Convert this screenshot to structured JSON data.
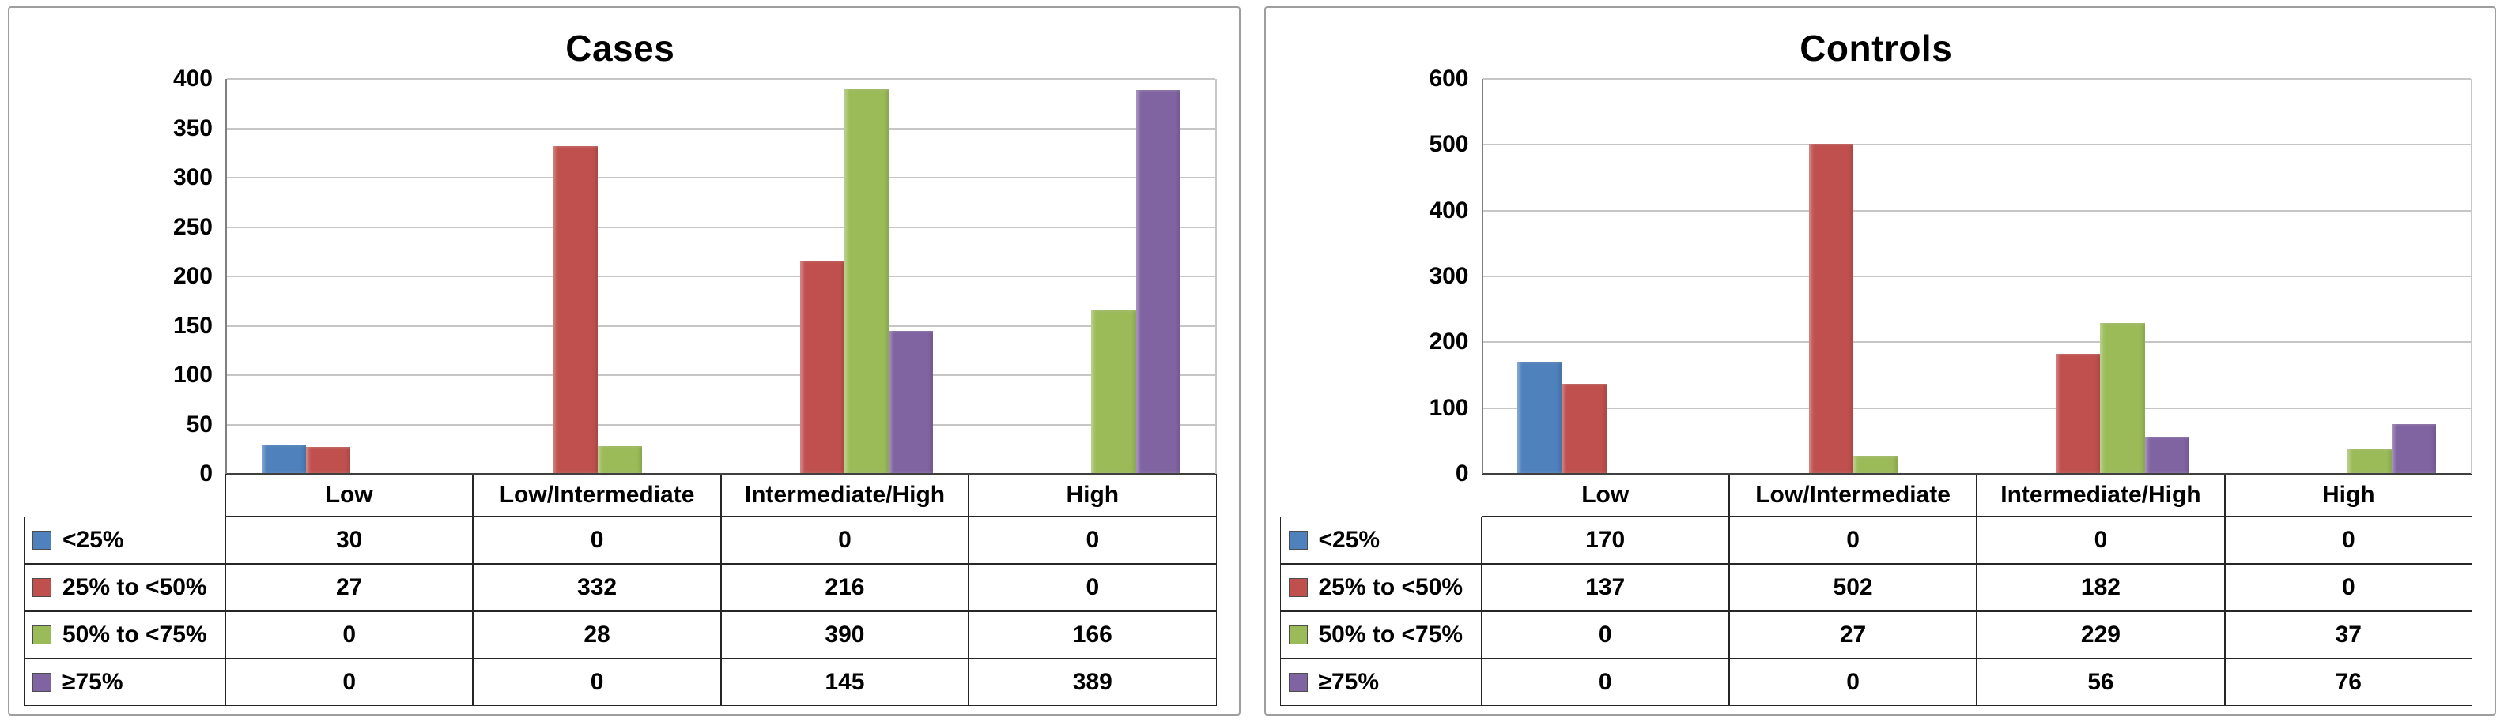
{
  "chart_data": [
    {
      "type": "bar",
      "title": "Cases",
      "categories": [
        "Low",
        "Low/Intermediate",
        "Intermediate/High",
        "High"
      ],
      "series": [
        {
          "name": "<25%",
          "color": "#4f81bd",
          "values": [
            30,
            0,
            0,
            0
          ]
        },
        {
          "name": "25% to <50%",
          "color": "#c0504d",
          "values": [
            27,
            332,
            216,
            0
          ]
        },
        {
          "name": "50% to <75%",
          "color": "#9bbb59",
          "values": [
            0,
            28,
            390,
            166
          ]
        },
        {
          "name": "≥75%",
          "color": "#8064a2",
          "values": [
            0,
            0,
            145,
            389
          ]
        }
      ],
      "ylim": [
        0,
        400
      ],
      "ytick_step": 50,
      "yticks": [
        0,
        50,
        100,
        150,
        200,
        250,
        300,
        350,
        400
      ],
      "grid": true,
      "legend_position": "data-table-left"
    },
    {
      "type": "bar",
      "title": "Controls",
      "categories": [
        "Low",
        "Low/Intermediate",
        "Intermediate/High",
        "High"
      ],
      "series": [
        {
          "name": "<25%",
          "color": "#4f81bd",
          "values": [
            170,
            0,
            0,
            0
          ]
        },
        {
          "name": "25% to <50%",
          "color": "#c0504d",
          "values": [
            137,
            502,
            182,
            0
          ]
        },
        {
          "name": "50% to <75%",
          "color": "#9bbb59",
          "values": [
            0,
            27,
            229,
            37
          ]
        },
        {
          "name": "≥75%",
          "color": "#8064a2",
          "values": [
            0,
            0,
            56,
            76
          ]
        }
      ],
      "ylim": [
        0,
        600
      ],
      "ytick_step": 100,
      "yticks": [
        0,
        100,
        200,
        300,
        400,
        500,
        600
      ],
      "grid": true,
      "legend_position": "data-table-left"
    }
  ]
}
